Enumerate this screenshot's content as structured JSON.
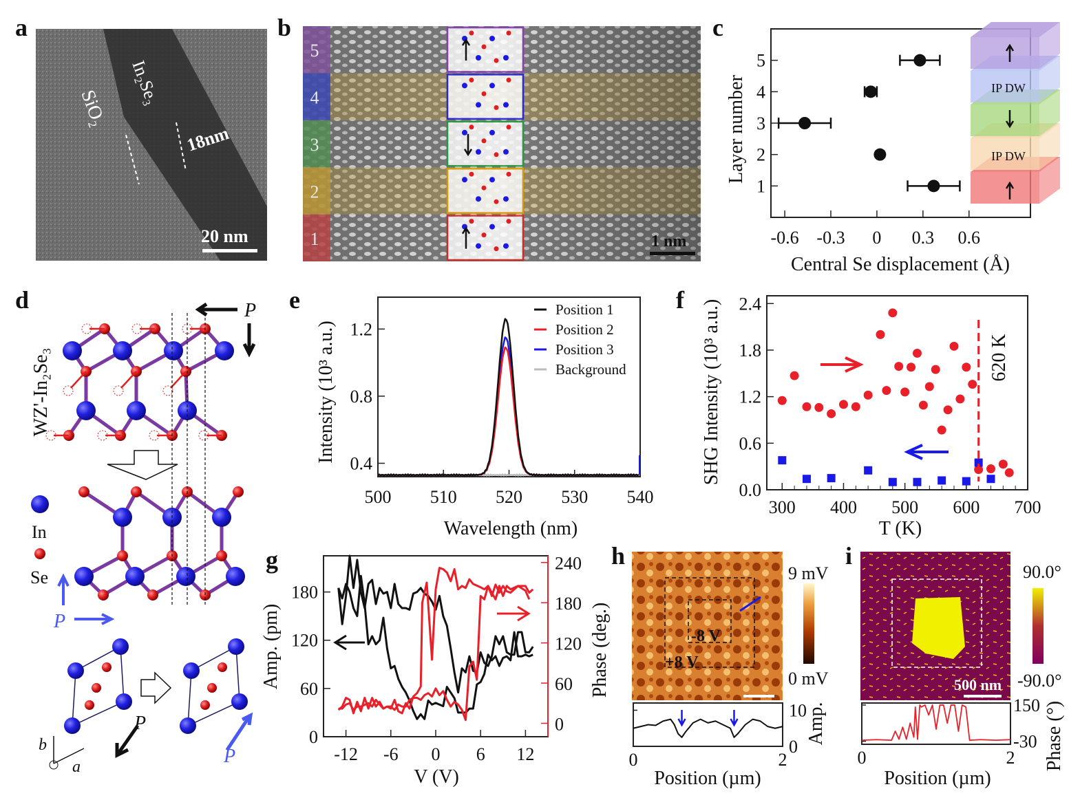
{
  "panel_labels": [
    "a",
    "b",
    "c",
    "d",
    "e",
    "f",
    "g",
    "h",
    "i"
  ],
  "colors": {
    "red": "#e8202a",
    "blue": "#1a1ae8",
    "black": "#111111",
    "gray": "#bbbbbb"
  },
  "panel_a": {
    "sio2": "SiO₂",
    "in2se3": "In₂Se₃",
    "thickness": "18nm",
    "scale_bar": "20 nm"
  },
  "panel_b": {
    "layers": [
      "1",
      "2",
      "3",
      "4",
      "5"
    ],
    "layer_colors": [
      "#c84a4a",
      "#c8a23c",
      "#5a9a5a",
      "#3c4ec8",
      "#8a5aa8"
    ],
    "scale_bar": "1 nm"
  },
  "panel_c_inset": {
    "labels": [
      "IP DW",
      "IP DW"
    ],
    "block_colors": [
      "#f07878",
      "#f8d8b0",
      "#a8d880",
      "#b8c4f4",
      "#b8a0e0"
    ]
  },
  "panel_d": {
    "phase": "WZ'-In₂Se₃",
    "legend_in": "In",
    "legend_se": "Se",
    "p": "P",
    "axis_b": "b",
    "axis_a": "a"
  },
  "panel_h": {
    "cbar_max": "9 mV",
    "cbar_min": "0 mV",
    "label_neg": "-8 V",
    "label_pos": "+8 V"
  },
  "panel_i": {
    "cbar_max": "90.0°",
    "cbar_min": "-90.0°",
    "scale_bar": "500 nm"
  },
  "chart_data": [
    {
      "panel": "c",
      "type": "scatter",
      "xlabel": "Central Se displacement (Å)",
      "ylabel": "Layer number",
      "xlim": [
        -0.69,
        1.0
      ],
      "ylim": [
        0,
        6
      ],
      "xticks": [
        -0.6,
        -0.3,
        0,
        0.3,
        0.6
      ],
      "xtick_labels": [
        "-0.6",
        "-0.3",
        "0",
        "0.3",
        "0.6"
      ],
      "yticks": [
        1,
        2,
        3,
        4,
        5
      ],
      "ytick_labels": [
        "1",
        "2",
        "3",
        "4",
        "5"
      ],
      "points": [
        {
          "layer": 1,
          "x": 0.37,
          "err": 0.17
        },
        {
          "layer": 2,
          "x": 0.02,
          "err": 0
        },
        {
          "layer": 3,
          "x": -0.47,
          "err": 0.17
        },
        {
          "layer": 4,
          "x": -0.04,
          "err": 0.04
        },
        {
          "layer": 5,
          "x": 0.28,
          "err": 0.13
        }
      ]
    },
    {
      "panel": "e",
      "type": "line",
      "xlabel": "Wavelength (nm)",
      "ylabel": "Intensity (10³ a.u.)",
      "xlim": [
        500,
        540
      ],
      "ylim": [
        0.32,
        1.39
      ],
      "xticks": [
        500,
        510,
        520,
        530,
        540
      ],
      "xtick_labels": [
        "500",
        "510",
        "520",
        "530",
        "540"
      ],
      "yticks": [
        0.4,
        0.8,
        1.2
      ],
      "ytick_labels": [
        "0.4",
        "0.8",
        "1.2"
      ],
      "legend": "top-right",
      "series": [
        {
          "name": "Position 1",
          "color": "#111111",
          "peak_wavelength": 519.5,
          "peak_intensity": 1.26,
          "baseline": 0.33
        },
        {
          "name": "Position 2",
          "color": "#e8202a",
          "peak_wavelength": 519.5,
          "peak_intensity": 1.09,
          "baseline": 0.33
        },
        {
          "name": "Position 3",
          "color": "#1a1ae8",
          "peak_wavelength": 519.5,
          "peak_intensity": 1.15,
          "baseline": 0.33
        },
        {
          "name": "Background",
          "color": "#bbbbbb",
          "peak_wavelength": 519.5,
          "peak_intensity": 0.33,
          "baseline": 0.33
        }
      ]
    },
    {
      "panel": "f",
      "type": "scatter",
      "xlabel": "T (K)",
      "ylabel": "SHG Intensity (10³ a.u.)",
      "xlim": [
        275,
        700
      ],
      "ylim": [
        0,
        2.5
      ],
      "xticks": [
        300,
        400,
        500,
        600,
        700
      ],
      "xtick_labels": [
        "300",
        "400",
        "500",
        "600",
        "700"
      ],
      "yticks": [
        0,
        0.6,
        1.2,
        1.8,
        2.4
      ],
      "ytick_labels": [
        "0.0",
        "0.6",
        "1.2",
        "1.8",
        "2.4"
      ],
      "annotation": "620 K",
      "transition_T": 620,
      "heating": {
        "x": [
          300,
          320,
          340,
          360,
          380,
          400,
          420,
          440,
          460,
          470,
          480,
          490,
          500,
          510,
          520,
          530,
          540,
          550,
          560,
          570,
          580,
          590,
          600,
          610,
          620,
          640,
          660,
          670
        ],
        "y": [
          1.15,
          1.47,
          1.07,
          1.06,
          0.98,
          1.1,
          1.07,
          1.22,
          2.0,
          1.28,
          2.28,
          1.59,
          1.26,
          1.58,
          1.76,
          1.09,
          1.33,
          1.55,
          0.77,
          1.03,
          1.85,
          1.17,
          1.58,
          1.36,
          0.26,
          0.27,
          0.33,
          0.22
        ]
      },
      "cooling": {
        "x": [
          300,
          340,
          380,
          440,
          480,
          520,
          560,
          600,
          620,
          640
        ],
        "y": [
          0.38,
          0.14,
          0.15,
          0.25,
          0.1,
          0.1,
          0.12,
          0.11,
          0.35,
          0.14
        ]
      }
    },
    {
      "panel": "g",
      "type": "line",
      "xlabel": "V (V)",
      "ylabel": "Amp. (pm)",
      "ylabel_right": "Phase (deg.)",
      "xlim": [
        -15,
        15
      ],
      "ylim": [
        0,
        225
      ],
      "ylim_right": [
        -20,
        250
      ],
      "xticks": [
        -12,
        -6,
        0,
        6,
        12
      ],
      "xtick_labels": [
        "-12",
        "-6",
        "0",
        "6",
        "12"
      ],
      "yticks": [
        0,
        60,
        120,
        180
      ],
      "ytick_labels": [
        "0",
        "60",
        "120",
        "180"
      ],
      "yticks_right": [
        0,
        60,
        120,
        180,
        240
      ],
      "ytick_labels_right": [
        "0",
        "60",
        "120",
        "180",
        "240"
      ],
      "amplitude": [
        {
          "x": [
            -13,
            -12.5,
            -12,
            -11.5,
            -11,
            -10.5,
            -10,
            -9.5,
            -9,
            -8.5,
            -8,
            -7.5,
            -7,
            -6.5,
            -6,
            -5.5,
            -5,
            -4.5,
            -4,
            -3.5,
            -3,
            -2.5,
            -2,
            -1.5,
            -1,
            -0.5,
            0,
            0.5,
            1,
            1.5,
            2,
            2.5,
            3,
            3.5,
            4,
            4.5,
            5,
            5.5,
            6,
            6.5,
            7,
            7.5,
            8,
            8.5,
            9,
            9.5,
            10,
            10.5,
            11,
            11.5,
            12,
            12.5,
            13
          ],
          "y": [
            185,
            140,
            175,
            225,
            185,
            220,
            180,
            160,
            190,
            195,
            165,
            185,
            178,
            180,
            160,
            190,
            165,
            160,
            160,
            158,
            178,
            180,
            185,
            178,
            175,
            168,
            158,
            175,
            150,
            138,
            110,
            80,
            55,
            85,
            80,
            100,
            82,
            80,
            105,
            92,
            88,
            100,
            125,
            115,
            125,
            105,
            102,
            102,
            130,
            130,
            105,
            105,
            112
          ]
        },
        {
          "x": [
            -13,
            -12.5,
            -12,
            -11.5,
            -11,
            -10.5,
            -10,
            -9.5,
            -9,
            -8.5,
            -8,
            -7.5,
            -7,
            -6.5,
            -6,
            -5.5,
            -5,
            -4.5,
            -4,
            -3.5,
            -3,
            -2.5,
            -2,
            -1.5,
            -1,
            -0.5,
            0,
            0.5,
            1,
            1.5,
            2,
            2.5,
            3,
            3.5,
            4,
            4.5,
            5,
            5.5,
            6,
            6.5,
            7,
            7.5,
            8,
            8.5,
            9,
            9.5,
            10,
            10.5,
            11,
            11.5,
            12,
            12.5,
            13
          ],
          "y": [
            185,
            172,
            190,
            180,
            160,
            150,
            200,
            165,
            115,
            125,
            115,
            120,
            148,
            110,
            85,
            88,
            72,
            62,
            55,
            45,
            32,
            22,
            28,
            22,
            45,
            40,
            42,
            40,
            38,
            62,
            55,
            48,
            30,
            30,
            30,
            35,
            35,
            65,
            68,
            78,
            102,
            95,
            100,
            88,
            98,
            100,
            95,
            130,
            100,
            100,
            102,
            100,
            102
          ]
        }
      ],
      "phase": [
        {
          "x": [
            -13,
            -12.5,
            -12,
            -11.5,
            -11,
            -10.5,
            -10,
            -9.5,
            -9,
            -8.5,
            -8,
            -7.5,
            -7,
            -6.5,
            -6,
            -5.5,
            -5,
            -4.5,
            -4,
            -3.5,
            -3,
            -2.5,
            -2,
            -1.8,
            -1.2,
            -0.5,
            0,
            0.5,
            1,
            1.5,
            2,
            2.5,
            3,
            3.5,
            4,
            4.5,
            5,
            6,
            6.5,
            7,
            7.5,
            8,
            8.5,
            9,
            9.5,
            10,
            10.5,
            11,
            12,
            12.5
          ],
          "y": [
            20,
            25,
            38,
            35,
            15,
            32,
            18,
            38,
            22,
            38,
            25,
            32,
            22,
            25,
            22,
            35,
            18,
            15,
            30,
            22,
            40,
            45,
            55,
            180,
            210,
            95,
            200,
            232,
            230,
            225,
            212,
            230,
            200,
            205,
            202,
            215,
            208,
            203,
            200,
            205,
            190,
            207,
            195,
            205,
            197,
            195,
            200,
            205,
            198,
            185
          ]
        },
        {
          "x": [
            -13,
            -12.5,
            -12,
            -11.5,
            -11,
            -10.5,
            -10,
            -9,
            -8.5,
            -8,
            -7.5,
            -7,
            -6.5,
            -6,
            -5.5,
            -5,
            -4.5,
            -4,
            -3.5,
            -3,
            -2.5,
            -2,
            -1.5,
            -1,
            -0.5,
            0,
            0.5,
            1,
            1.5,
            2,
            2.5,
            3,
            3.5,
            4,
            4.5,
            5,
            5.5,
            6,
            6.5,
            7,
            7.5,
            8,
            8.5,
            9,
            9.5,
            10,
            11,
            12,
            12.5,
            13
          ],
          "y": [
            22,
            22,
            28,
            30,
            20,
            25,
            25,
            30,
            25,
            35,
            28,
            22,
            25,
            25,
            20,
            28,
            25,
            25,
            35,
            38,
            38,
            35,
            42,
            45,
            40,
            52,
            42,
            48,
            35,
            25,
            32,
            28,
            20,
            5,
            85,
            92,
            65,
            190,
            185,
            205,
            195,
            185,
            205,
            190,
            205,
            200,
            205,
            205,
            195,
            200
          ]
        }
      ]
    },
    {
      "panel": "h",
      "type": "line",
      "xlabel": "Position (µm)",
      "ylabel": "Amp.",
      "xlim": [
        0,
        2
      ],
      "ylim": [
        0,
        12
      ],
      "xticks": [
        0,
        2
      ],
      "xtick_labels": [
        "0",
        "2"
      ],
      "yticks": [
        0,
        10
      ],
      "ytick_labels": [
        "0",
        "10"
      ],
      "x": [
        0,
        0.1,
        0.2,
        0.3,
        0.4,
        0.5,
        0.55,
        0.6,
        0.65,
        0.7,
        0.8,
        0.9,
        1.0,
        1.1,
        1.2,
        1.3,
        1.35,
        1.4,
        1.5,
        1.6,
        1.7,
        1.8,
        1.9,
        2.0
      ],
      "y": [
        5,
        5.5,
        6,
        5.8,
        7,
        7.5,
        6,
        3.5,
        2.5,
        4,
        6.5,
        7.5,
        6.5,
        7,
        6,
        5,
        2.5,
        3.5,
        6,
        7.5,
        7,
        5.5,
        5,
        5.5
      ]
    },
    {
      "panel": "i",
      "type": "line",
      "xlabel": "Position (µm)",
      "ylabel": "Phase (°)",
      "xlim": [
        0,
        2
      ],
      "ylim": [
        -45,
        160
      ],
      "xticks": [
        0,
        2
      ],
      "xtick_labels": [
        "0",
        "2"
      ],
      "yticks": [
        -30,
        150
      ],
      "ytick_labels": [
        "-30",
        "150"
      ],
      "x": [
        0,
        0.2,
        0.4,
        0.45,
        0.5,
        0.55,
        0.6,
        0.65,
        0.7,
        0.72,
        0.75,
        0.78,
        0.8,
        0.85,
        0.9,
        0.95,
        1.0,
        1.05,
        1.1,
        1.15,
        1.2,
        1.25,
        1.3,
        1.35,
        1.4,
        1.45,
        1.6,
        1.8,
        2.0
      ],
      "y": [
        -25,
        -22,
        -25,
        20,
        -20,
        40,
        -20,
        60,
        -10,
        140,
        -20,
        150,
        140,
        150,
        100,
        150,
        30,
        150,
        150,
        60,
        150,
        150,
        20,
        150,
        140,
        -25,
        -22,
        -25,
        -22
      ]
    }
  ]
}
